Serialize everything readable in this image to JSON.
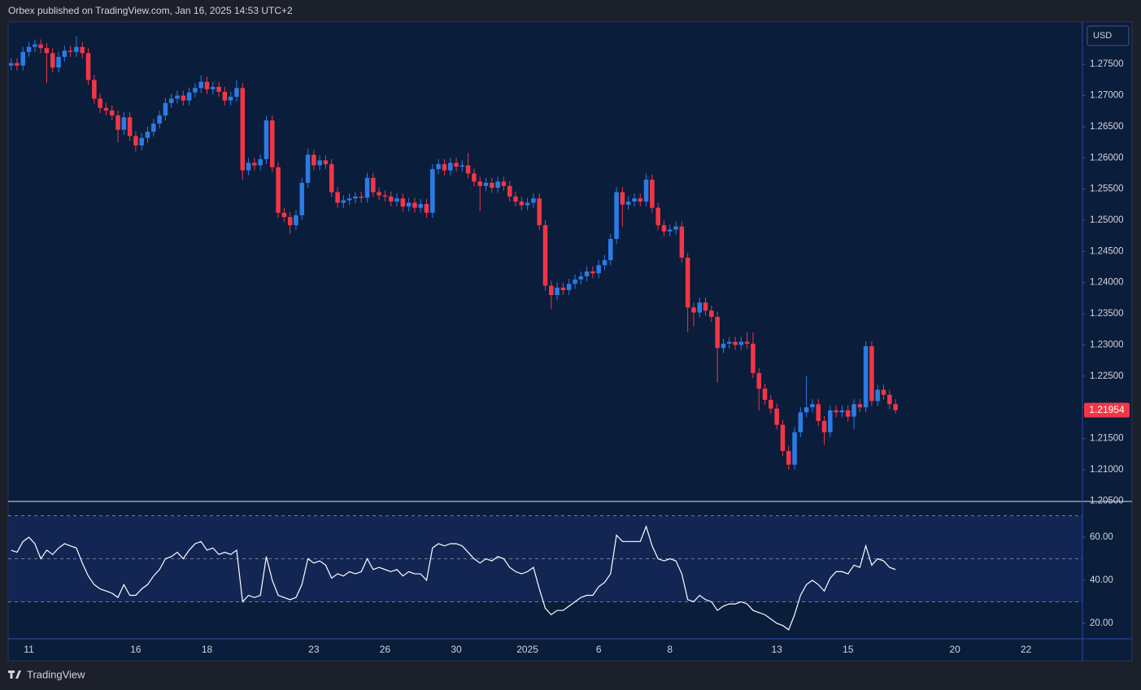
{
  "header": "Orbex published on TradingView.com, Jan 16, 2025 14:53 UTC+2",
  "footer": "TradingView",
  "chart_data": [
    {
      "type": "candlestick",
      "currency": "USD",
      "up_color": "#2c7be5",
      "down_color": "#f23645",
      "grid": false,
      "ylim": [
        1.2049,
        1.2818
      ],
      "yticks": [
        {
          "value": 1.205,
          "label": "1.20500"
        },
        {
          "value": 1.21,
          "label": "1.21000"
        },
        {
          "value": 1.215,
          "label": "1.21500"
        },
        {
          "value": 1.22,
          "label": "1.22000"
        },
        {
          "value": 1.225,
          "label": "1.22500"
        },
        {
          "value": 1.23,
          "label": "1.23000"
        },
        {
          "value": 1.235,
          "label": "1.23500"
        },
        {
          "value": 1.24,
          "label": "1.24000"
        },
        {
          "value": 1.245,
          "label": "1.24500"
        },
        {
          "value": 1.25,
          "label": "1.25000"
        },
        {
          "value": 1.255,
          "label": "1.25500"
        },
        {
          "value": 1.26,
          "label": "1.26000"
        },
        {
          "value": 1.265,
          "label": "1.26500"
        },
        {
          "value": 1.27,
          "label": "1.27000"
        },
        {
          "value": 1.275,
          "label": "1.27500"
        }
      ],
      "open": [
        1.2748,
        1.2752,
        1.2748,
        1.277,
        1.2778,
        1.2782,
        1.2776,
        1.2768,
        1.2745,
        1.2762,
        1.2772,
        1.277,
        1.2778,
        1.2768,
        1.2725,
        1.2695,
        1.268,
        1.2676,
        1.2668,
        1.2645,
        1.2665,
        1.2635,
        1.262,
        1.2632,
        1.2642,
        1.2655,
        1.2668,
        1.2688,
        1.2695,
        1.27,
        1.2692,
        1.2705,
        1.2712,
        1.2722,
        1.271,
        1.2714,
        1.2706,
        1.2692,
        1.2698,
        1.2712,
        1.258,
        1.2592,
        1.2588,
        1.2598,
        1.266,
        1.2585,
        1.2512,
        1.2505,
        1.2492,
        1.2508,
        1.256,
        1.2605,
        1.2588,
        1.2596,
        1.259,
        1.2545,
        1.2528,
        1.2532,
        1.2535,
        1.2538,
        1.2536,
        1.2568,
        1.2545,
        1.254,
        1.2538,
        1.253,
        1.2535,
        1.2522,
        1.2528,
        1.252,
        1.2526,
        1.2512,
        1.2582,
        1.259,
        1.258,
        1.2592,
        1.2586,
        1.2588,
        1.2575,
        1.2562,
        1.2555,
        1.256,
        1.2552,
        1.2562,
        1.2555,
        1.2538,
        1.253,
        1.2524,
        1.2528,
        1.2535,
        1.2492,
        1.2395,
        1.238,
        1.2392,
        1.2388,
        1.2398,
        1.2405,
        1.241,
        1.2418,
        1.2415,
        1.2428,
        1.2436,
        1.247,
        1.2545,
        1.2525,
        1.253,
        1.2535,
        1.253,
        1.2565,
        1.252,
        1.2492,
        1.2482,
        1.2485,
        1.249,
        1.244,
        1.236,
        1.2352,
        1.2368,
        1.2355,
        1.2345,
        1.2295,
        1.2302,
        1.2305,
        1.23,
        1.2305,
        1.2302,
        1.2255,
        1.223,
        1.2212,
        1.2198,
        1.2172,
        1.213,
        1.2108,
        1.216,
        1.2192,
        1.22,
        1.2205,
        1.2178,
        1.216,
        1.2195,
        1.2192,
        1.2195,
        1.2185,
        1.2205,
        1.22,
        1.2298,
        1.221,
        1.2228,
        1.222,
        1.2205
      ],
      "high": [
        1.276,
        1.276,
        1.2778,
        1.2786,
        1.279,
        1.279,
        1.2784,
        1.2776,
        1.277,
        1.278,
        1.278,
        1.2795,
        1.2786,
        1.2776,
        1.2733,
        1.2703,
        1.2688,
        1.2684,
        1.2676,
        1.2673,
        1.2673,
        1.2643,
        1.264,
        1.265,
        1.2663,
        1.2676,
        1.2696,
        1.2703,
        1.2708,
        1.2708,
        1.2713,
        1.272,
        1.2732,
        1.273,
        1.2722,
        1.2722,
        1.2714,
        1.2706,
        1.2725,
        1.272,
        1.26,
        1.26,
        1.2606,
        1.2668,
        1.2668,
        1.2593,
        1.252,
        1.2513,
        1.2516,
        1.2568,
        1.2615,
        1.2613,
        1.2604,
        1.2604,
        1.2598,
        1.2553,
        1.254,
        1.2543,
        1.2546,
        1.2546,
        1.2576,
        1.2576,
        1.2553,
        1.2548,
        1.2546,
        1.2543,
        1.2543,
        1.2536,
        1.2536,
        1.2534,
        1.2534,
        1.259,
        1.2598,
        1.2598,
        1.26,
        1.26,
        1.2596,
        1.2608,
        1.2583,
        1.257,
        1.2568,
        1.2568,
        1.257,
        1.257,
        1.2563,
        1.2546,
        1.2538,
        1.2536,
        1.2543,
        1.2543,
        1.25,
        1.2403,
        1.24,
        1.24,
        1.2406,
        1.2413,
        1.2418,
        1.2426,
        1.2426,
        1.2436,
        1.2444,
        1.2478,
        1.2553,
        1.2553,
        1.2538,
        1.2543,
        1.2543,
        1.2575,
        1.2573,
        1.2528,
        1.25,
        1.2493,
        1.2498,
        1.2498,
        1.2448,
        1.2368,
        1.2376,
        1.2376,
        1.2363,
        1.2353,
        1.231,
        1.2313,
        1.2313,
        1.2313,
        1.232,
        1.232,
        1.2263,
        1.2238,
        1.222,
        1.2206,
        1.218,
        1.2138,
        1.2168,
        1.22,
        1.225,
        1.2213,
        1.2213,
        1.2186,
        1.2203,
        1.2203,
        1.2203,
        1.2203,
        1.2213,
        1.2213,
        1.2306,
        1.2306,
        1.2236,
        1.2236,
        1.2228,
        1.2213
      ],
      "low": [
        1.274,
        1.274,
        1.274,
        1.2762,
        1.277,
        1.2768,
        1.272,
        1.2737,
        1.2737,
        1.2754,
        1.2762,
        1.2762,
        1.276,
        1.2717,
        1.2687,
        1.2672,
        1.2668,
        1.266,
        1.2625,
        1.2637,
        1.2627,
        1.261,
        1.2612,
        1.2624,
        1.2634,
        1.2647,
        1.266,
        1.268,
        1.2687,
        1.2684,
        1.2684,
        1.2697,
        1.2704,
        1.2702,
        1.2702,
        1.2698,
        1.2684,
        1.2684,
        1.269,
        1.2565,
        1.2572,
        1.258,
        1.258,
        1.259,
        1.2577,
        1.2504,
        1.2497,
        1.2478,
        1.2484,
        1.25,
        1.2552,
        1.258,
        1.258,
        1.2582,
        1.2537,
        1.252,
        1.252,
        1.2524,
        1.2527,
        1.2528,
        1.2528,
        1.2537,
        1.2532,
        1.253,
        1.2522,
        1.2522,
        1.2514,
        1.2514,
        1.2512,
        1.2512,
        1.2504,
        1.2504,
        1.2574,
        1.2572,
        1.2572,
        1.2578,
        1.2578,
        1.2567,
        1.2554,
        1.2515,
        1.2547,
        1.2544,
        1.2544,
        1.2547,
        1.253,
        1.2522,
        1.2516,
        1.2516,
        1.252,
        1.2484,
        1.2387,
        1.2358,
        1.2372,
        1.238,
        1.238,
        1.239,
        1.2397,
        1.2402,
        1.2407,
        1.2407,
        1.242,
        1.2428,
        1.2462,
        1.249,
        1.2517,
        1.2522,
        1.2522,
        1.2522,
        1.2512,
        1.2484,
        1.2474,
        1.2474,
        1.2477,
        1.2432,
        1.232,
        1.233,
        1.2344,
        1.2347,
        1.2337,
        1.224,
        1.2287,
        1.2294,
        1.2292,
        1.2292,
        1.2294,
        1.2247,
        1.2195,
        1.2204,
        1.219,
        1.2164,
        1.2122,
        1.21,
        1.21,
        1.2152,
        1.2184,
        1.2192,
        1.217,
        1.214,
        1.2152,
        1.2184,
        1.2184,
        1.2177,
        1.2165,
        1.2192,
        1.2192,
        1.2202,
        1.2202,
        1.2212,
        1.2197,
        1.219
      ],
      "close": [
        1.2752,
        1.2748,
        1.277,
        1.2778,
        1.2782,
        1.2776,
        1.2768,
        1.2745,
        1.2762,
        1.2772,
        1.277,
        1.2778,
        1.2768,
        1.2725,
        1.2695,
        1.268,
        1.2676,
        1.2668,
        1.2645,
        1.2665,
        1.2635,
        1.262,
        1.2632,
        1.2642,
        1.2655,
        1.2668,
        1.2688,
        1.2695,
        1.27,
        1.2692,
        1.2705,
        1.2712,
        1.2722,
        1.271,
        1.2714,
        1.2706,
        1.2692,
        1.2698,
        1.2712,
        1.258,
        1.2592,
        1.2588,
        1.2598,
        1.266,
        1.2585,
        1.2512,
        1.2505,
        1.2492,
        1.2508,
        1.256,
        1.2605,
        1.2588,
        1.2596,
        1.259,
        1.2545,
        1.2528,
        1.2532,
        1.2535,
        1.2538,
        1.2536,
        1.2568,
        1.2545,
        1.254,
        1.2538,
        1.253,
        1.2535,
        1.2522,
        1.2528,
        1.252,
        1.2526,
        1.2512,
        1.2582,
        1.259,
        1.258,
        1.2592,
        1.2586,
        1.2588,
        1.2575,
        1.2562,
        1.2555,
        1.256,
        1.2552,
        1.2562,
        1.2555,
        1.2538,
        1.253,
        1.2524,
        1.2528,
        1.2535,
        1.2492,
        1.2395,
        1.238,
        1.2392,
        1.2388,
        1.2398,
        1.2405,
        1.241,
        1.2418,
        1.2415,
        1.2428,
        1.2436,
        1.247,
        1.2545,
        1.2525,
        1.253,
        1.2535,
        1.253,
        1.2565,
        1.252,
        1.2492,
        1.2482,
        1.2485,
        1.249,
        1.244,
        1.236,
        1.2352,
        1.2368,
        1.2355,
        1.2345,
        1.2295,
        1.2302,
        1.2305,
        1.23,
        1.2305,
        1.2302,
        1.2255,
        1.223,
        1.2212,
        1.2198,
        1.2172,
        1.213,
        1.2108,
        1.216,
        1.2192,
        1.22,
        1.2205,
        1.2178,
        1.216,
        1.2195,
        1.2192,
        1.2195,
        1.2185,
        1.2205,
        1.22,
        1.2298,
        1.221,
        1.2228,
        1.222,
        1.2205,
        1.21954
      ]
    },
    {
      "type": "line",
      "color": "#ffffff",
      "ylim": [
        12.8,
        75.5
      ],
      "yticks": [
        {
          "value": 20,
          "label": "20.00"
        },
        {
          "value": 40,
          "label": "40.00"
        },
        {
          "value": 60,
          "label": "60.00"
        }
      ],
      "hlines": [
        70,
        50,
        30
      ],
      "categories": [
        null,
        null,
        null,
        "11",
        null,
        null,
        null,
        null,
        null,
        null,
        null,
        null,
        null,
        null,
        null,
        null,
        null,
        null,
        null,
        null,
        null,
        "16",
        null,
        null,
        null,
        null,
        null,
        null,
        null,
        null,
        null,
        null,
        null,
        "18",
        null,
        null,
        null,
        null,
        null,
        null,
        null,
        null,
        null,
        null,
        null,
        null,
        null,
        null,
        null,
        null,
        null,
        "23",
        null,
        null,
        null,
        null,
        null,
        null,
        null,
        null,
        null,
        null,
        null,
        "26",
        null,
        null,
        null,
        null,
        null,
        null,
        null,
        null,
        null,
        null,
        null,
        "30",
        null,
        null,
        null,
        null,
        null,
        null,
        null,
        null,
        null,
        null,
        null,
        "2025",
        null,
        null,
        null,
        null,
        null,
        null,
        null,
        null,
        null,
        null,
        null,
        "6",
        null,
        null,
        null,
        null,
        null,
        null,
        null,
        null,
        null,
        null,
        null,
        "8",
        null,
        null,
        null,
        null,
        null,
        null,
        null,
        null,
        null,
        null,
        null,
        null,
        null,
        null,
        null,
        null,
        null,
        "13",
        null,
        null,
        null,
        null,
        null,
        null,
        null,
        null,
        null,
        null,
        null,
        "15",
        null,
        null,
        null,
        null,
        null,
        null,
        null,
        null,
        null,
        null,
        null,
        null,
        null,
        null,
        null,
        null,
        null,
        "20",
        null,
        null,
        null,
        null,
        null,
        null,
        null,
        null,
        null,
        null,
        null,
        "22",
        null,
        null,
        null,
        null,
        null,
        null,
        null,
        null,
        null
      ],
      "values": [
        54,
        53,
        58,
        60,
        57,
        50,
        54,
        52,
        55,
        57,
        56,
        55,
        48,
        42,
        38,
        36,
        35,
        34,
        32,
        38,
        33,
        33,
        36,
        38,
        42,
        45,
        50,
        51,
        53,
        50,
        54,
        57,
        58,
        54,
        55,
        52,
        53,
        52,
        54,
        30,
        33,
        32,
        33,
        51,
        40,
        33,
        32,
        31,
        32,
        38,
        50,
        48,
        49,
        47,
        41,
        43,
        42,
        44,
        43,
        44,
        50,
        45,
        46,
        45,
        44,
        45,
        42,
        44,
        43,
        43,
        40,
        55,
        57,
        56,
        57,
        57,
        56,
        53,
        50,
        48,
        50,
        49,
        51,
        50,
        46,
        44,
        43,
        44,
        46,
        36,
        27,
        24,
        26,
        26,
        28,
        30,
        32,
        33,
        33,
        37,
        39,
        43,
        61,
        58,
        58,
        58,
        58,
        65,
        56,
        50,
        49,
        50,
        49,
        43,
        31,
        30,
        33,
        31,
        30,
        26,
        28,
        29,
        29,
        30,
        29,
        26,
        25,
        24,
        22,
        20,
        19,
        17,
        24,
        33,
        38,
        40,
        38,
        35,
        41,
        44,
        44,
        43,
        47,
        46,
        56,
        47,
        50,
        49,
        46,
        45,
        null,
        null,
        null,
        null,
        null,
        null,
        null,
        null,
        null,
        null,
        null,
        null,
        null,
        null,
        null,
        null,
        null,
        null,
        null,
        null,
        null,
        null,
        null,
        null,
        null,
        null,
        null,
        null,
        null,
        null,
        null
      ]
    }
  ]
}
